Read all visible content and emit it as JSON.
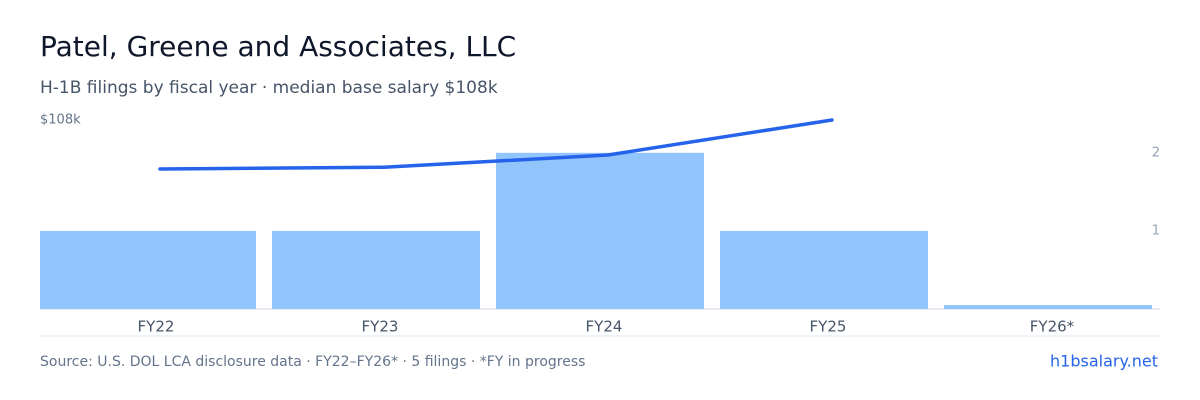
{
  "chart_data": {
    "type": "bar-line",
    "title": "Patel, Greene and Associates, LLC",
    "subtitle": "H-1B filings by fiscal year · median base salary $108k",
    "categories": [
      "FY22",
      "FY23",
      "FY24",
      "FY25",
      "FY26*"
    ],
    "series": [
      {
        "name": "Filings",
        "type": "bar",
        "axis": "y2",
        "color": "#93c5fd",
        "values": [
          1,
          1,
          2,
          1,
          0.05
        ]
      },
      {
        "name": "Median base salary",
        "type": "line",
        "color": "#2563eb",
        "values": [
          80000,
          81000,
          88000,
          108000,
          null
        ]
      }
    ],
    "ylim": [
      0,
      108000
    ],
    "yticks": [
      {
        "value": 108000,
        "label": "$108k"
      }
    ],
    "y2lim": [
      0,
      2.42
    ],
    "y2ticks": [
      1,
      2
    ],
    "source": "Source: U.S. DOL LCA disclosure data · FY22–FY26* · 5 filings · *FY in progress",
    "site": "h1bsalary.net"
  }
}
